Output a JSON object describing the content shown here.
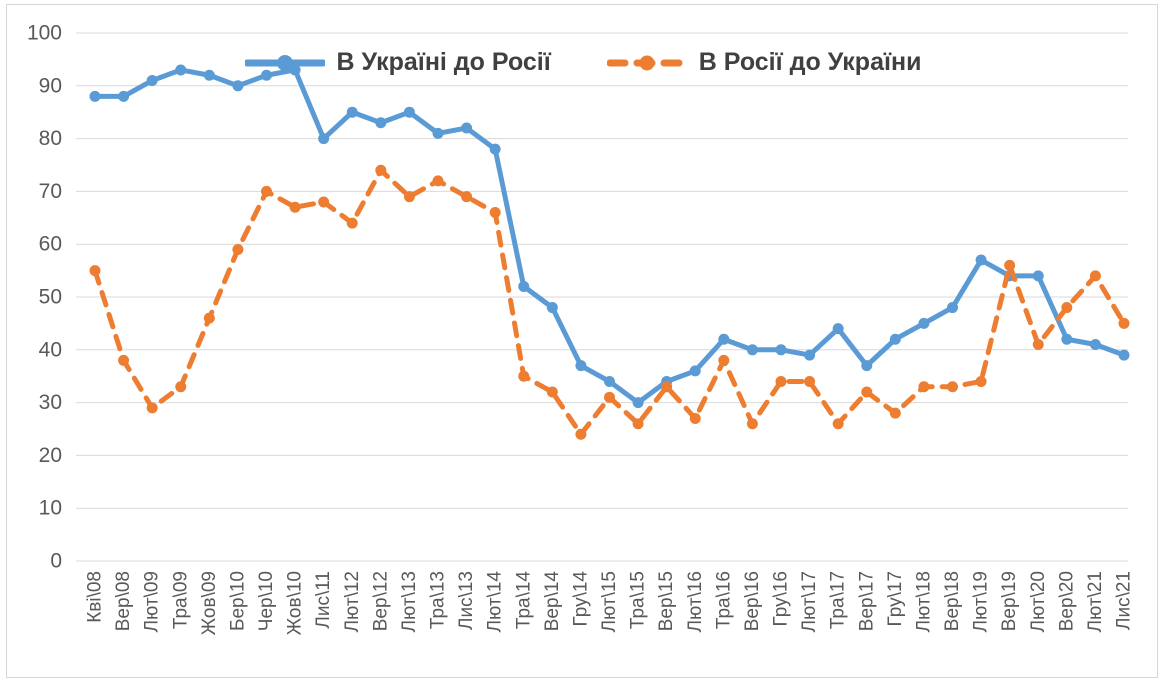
{
  "frame": {
    "background_color": "#FFFFFF",
    "border_color": "#D7D7D7"
  },
  "chart_data": {
    "type": "line",
    "title": "",
    "xlabel": "",
    "ylabel": "",
    "ylim": [
      0,
      100
    ],
    "y_ticks": [
      0,
      10,
      20,
      30,
      40,
      50,
      60,
      70,
      80,
      90,
      100
    ],
    "grid": "horizontal",
    "grid_color": "#D9D9D9",
    "axis_text_color": "#595959",
    "legend_position": "top-center",
    "categories": [
      "Кві\\08",
      "Вер\\08",
      "Лют\\09",
      "Тра\\09",
      "Жов\\09",
      "Бер\\10",
      "Чер\\10",
      "Жов\\10",
      "Лис\\11",
      "Лют\\12",
      "Вер\\12",
      "Лют\\13",
      "Тра\\13",
      "Лис\\13",
      "Лют\\14",
      "Тра\\14",
      "Вер\\14",
      "Гру\\14",
      "Лют\\15",
      "Тра\\15",
      "Вер\\15",
      "Лют\\16",
      "Тра\\16",
      "Вер\\16",
      "Гру\\16",
      "Лют\\17",
      "Тра\\17",
      "Вер\\17",
      "Гру\\17",
      "Лют\\18",
      "Вер\\18",
      "Лют\\19",
      "Вер\\19",
      "Лют\\20",
      "Вер\\20",
      "Лют\\21",
      "Лис\\21"
    ],
    "series": [
      {
        "name": "В Україні до Росії",
        "color": "#5B9BD5",
        "line_style": "solid",
        "marker": "circle",
        "values": [
          88,
          88,
          91,
          93,
          92,
          90,
          92,
          93,
          80,
          85,
          83,
          85,
          81,
          82,
          78,
          52,
          48,
          37,
          34,
          30,
          34,
          36,
          42,
          40,
          40,
          39,
          44,
          37,
          42,
          45,
          48,
          57,
          54,
          54,
          42,
          41,
          39
        ]
      },
      {
        "name": "В Росії до України",
        "color": "#ED7D31",
        "line_style": "dashed",
        "marker": "circle",
        "values": [
          55,
          38,
          29,
          33,
          46,
          59,
          70,
          67,
          68,
          64,
          74,
          69,
          72,
          69,
          66,
          35,
          32,
          24,
          31,
          26,
          33,
          27,
          38,
          26,
          34,
          34,
          26,
          32,
          28,
          33,
          33,
          34,
          56,
          41,
          48,
          54,
          45
        ]
      }
    ]
  }
}
